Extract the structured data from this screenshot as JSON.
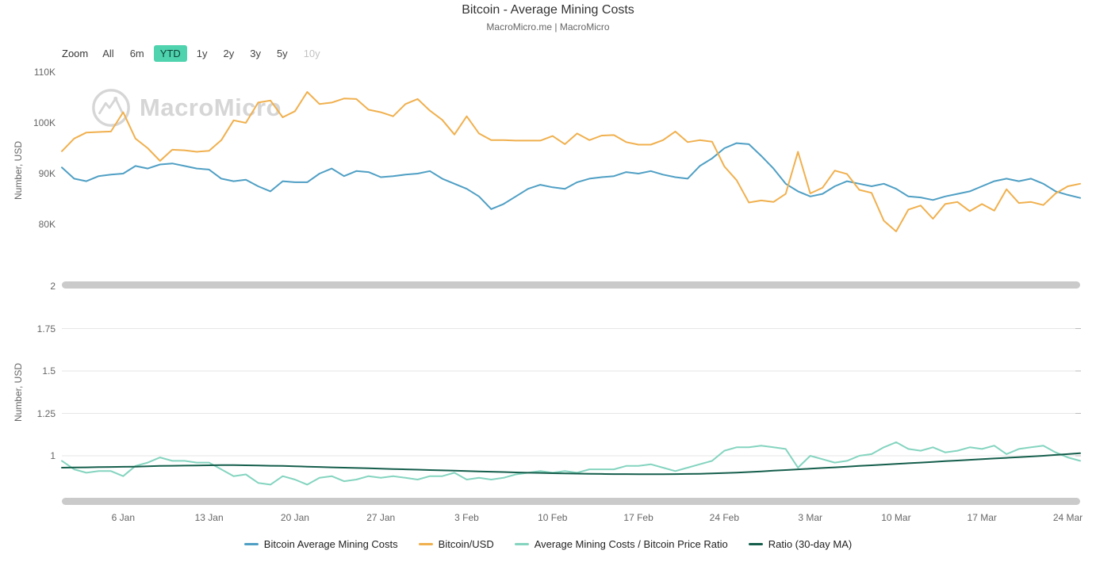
{
  "chart_data": {
    "type": "line",
    "title": "Bitcoin - Average Mining Costs",
    "subtitle": "MacroMicro.me | MacroMicro",
    "x_axis": {
      "freq": "daily",
      "ticks": [
        {
          "label": "6 Jan",
          "index": 5
        },
        {
          "label": "13 Jan",
          "index": 12
        },
        {
          "label": "20 Jan",
          "index": 19
        },
        {
          "label": "27 Jan",
          "index": 26
        },
        {
          "label": "3 Feb",
          "index": 33
        },
        {
          "label": "10 Feb",
          "index": 40
        },
        {
          "label": "17 Feb",
          "index": 47
        },
        {
          "label": "24 Feb",
          "index": 54
        },
        {
          "label": "3 Mar",
          "index": 61
        },
        {
          "label": "10 Mar",
          "index": 68
        },
        {
          "label": "17 Mar",
          "index": 75
        },
        {
          "label": "24 Mar",
          "index": 82
        }
      ]
    },
    "n_points": 84,
    "panes": [
      {
        "ylabel": "Number, USD",
        "unit": "thousand USD",
        "ylim": [
          76,
          113
        ],
        "grid": false,
        "y_ticks": [
          {
            "label": "110K",
            "value": 110
          },
          {
            "label": "100K",
            "value": 100
          },
          {
            "label": "90K",
            "value": 90
          },
          {
            "label": "80K",
            "value": 80
          }
        ],
        "series": [
          {
            "name": "Bitcoin Average Mining Costs",
            "color": "#4f9fc4",
            "values": [
              91.2,
              89.0,
              88.5,
              89.5,
              89.8,
              90.0,
              91.5,
              91.0,
              91.8,
              92.0,
              91.5,
              91.0,
              90.8,
              89.0,
              88.5,
              88.8,
              87.5,
              86.5,
              88.5,
              88.3,
              88.3,
              90.0,
              91.0,
              89.5,
              90.5,
              90.3,
              89.3,
              89.5,
              89.8,
              90.0,
              90.5,
              89.0,
              88.0,
              87.0,
              85.5,
              83.0,
              84.0,
              85.5,
              87.0,
              87.8,
              87.3,
              87.0,
              88.3,
              89.0,
              89.3,
              89.5,
              90.3,
              90.0,
              90.5,
              89.8,
              89.3,
              89.0,
              91.5,
              93.0,
              95.0,
              96.0,
              95.8,
              93.5,
              91.0,
              88.0,
              86.5,
              85.5,
              86.0,
              87.5,
              88.5,
              88.0,
              87.5,
              88.0,
              87.0,
              85.5,
              85.3,
              84.8,
              85.5,
              86.0,
              86.5,
              87.5,
              88.5,
              89.0,
              88.5,
              89.0,
              88.0,
              86.5,
              85.8,
              85.2
            ]
          },
          {
            "name": "Bitcoin/USD",
            "color": "#f0b04e",
            "values": [
              94.4,
              96.9,
              98.1,
              98.2,
              98.3,
              102.1,
              96.9,
              95.0,
              92.5,
              94.7,
              94.6,
              94.3,
              94.5,
              96.6,
              100.5,
              100.0,
              104.0,
              104.4,
              101.1,
              102.3,
              106.1,
              103.7,
              104.0,
              104.8,
              104.7,
              102.6,
              102.1,
              101.3,
              103.7,
              104.7,
              102.4,
              100.6,
              97.7,
              101.3,
              97.9,
              96.6,
              96.6,
              96.5,
              96.5,
              96.5,
              97.4,
              95.8,
              97.9,
              96.6,
              97.5,
              97.6,
              96.2,
              95.7,
              95.7,
              96.6,
              98.3,
              96.2,
              96.6,
              96.3,
              91.4,
              88.7,
              84.3,
              84.7,
              84.4,
              86.0,
              94.3,
              86.1,
              87.2,
              90.6,
              89.9,
              86.8,
              86.2,
              80.7,
              78.6,
              82.9,
              83.7,
              81.1,
              84.0,
              84.4,
              82.6,
              84.0,
              82.7,
              86.9,
              84.2,
              84.4,
              83.8,
              86.1,
              87.5,
              88.0
            ]
          }
        ]
      },
      {
        "ylabel": "Number, USD",
        "unit": "ratio",
        "ylim": [
          0.78,
          2.0
        ],
        "grid": true,
        "y_ticks": [
          {
            "label": "2",
            "value": 2
          },
          {
            "label": "1.75",
            "value": 1.75
          },
          {
            "label": "1.5",
            "value": 1.5
          },
          {
            "label": "1.25",
            "value": 1.25
          },
          {
            "label": "1",
            "value": 1
          }
        ],
        "series": [
          {
            "name": "Average Mining Costs / Bitcoin Price Ratio",
            "color": "#84d4bf",
            "values": [
              0.97,
              0.92,
              0.9,
              0.91,
              0.91,
              0.88,
              0.94,
              0.96,
              0.99,
              0.97,
              0.97,
              0.96,
              0.96,
              0.92,
              0.88,
              0.89,
              0.84,
              0.83,
              0.88,
              0.86,
              0.83,
              0.87,
              0.88,
              0.85,
              0.86,
              0.88,
              0.87,
              0.88,
              0.87,
              0.86,
              0.88,
              0.88,
              0.9,
              0.86,
              0.87,
              0.86,
              0.87,
              0.89,
              0.9,
              0.91,
              0.9,
              0.91,
              0.9,
              0.92,
              0.92,
              0.92,
              0.94,
              0.94,
              0.95,
              0.93,
              0.91,
              0.93,
              0.95,
              0.97,
              1.03,
              1.05,
              1.05,
              1.06,
              1.05,
              1.04,
              0.93,
              1.0,
              0.98,
              0.96,
              0.97,
              1.0,
              1.01,
              1.05,
              1.08,
              1.04,
              1.03,
              1.05,
              1.02,
              1.03,
              1.05,
              1.04,
              1.06,
              1.01,
              1.04,
              1.05,
              1.06,
              1.02,
              0.99,
              0.97
            ]
          },
          {
            "name": "Ratio (30-day MA)",
            "color": "#155e4c",
            "values": [
              0.93,
              0.931,
              0.932,
              0.933,
              0.934,
              0.935,
              0.936,
              0.938,
              0.94,
              0.941,
              0.942,
              0.943,
              0.944,
              0.945,
              0.945,
              0.944,
              0.943,
              0.941,
              0.94,
              0.938,
              0.936,
              0.934,
              0.932,
              0.93,
              0.928,
              0.926,
              0.924,
              0.922,
              0.92,
              0.918,
              0.916,
              0.914,
              0.912,
              0.91,
              0.908,
              0.906,
              0.904,
              0.902,
              0.9,
              0.899,
              0.897,
              0.896,
              0.895,
              0.894,
              0.893,
              0.892,
              0.892,
              0.891,
              0.891,
              0.891,
              0.892,
              0.893,
              0.894,
              0.896,
              0.898,
              0.901,
              0.904,
              0.908,
              0.912,
              0.916,
              0.92,
              0.924,
              0.928,
              0.932,
              0.936,
              0.94,
              0.944,
              0.948,
              0.952,
              0.956,
              0.96,
              0.964,
              0.968,
              0.972,
              0.976,
              0.98,
              0.984,
              0.988,
              0.992,
              0.996,
              1.0,
              1.005,
              1.01,
              1.015
            ]
          }
        ]
      }
    ],
    "legend_position": "bottom"
  },
  "toolbar": {
    "label": "Zoom",
    "active_bg": "#4fd3ae",
    "buttons": [
      {
        "label": "All",
        "active": false,
        "enabled": true
      },
      {
        "label": "6m",
        "active": false,
        "enabled": true
      },
      {
        "label": "YTD",
        "active": true,
        "enabled": true
      },
      {
        "label": "1y",
        "active": false,
        "enabled": true
      },
      {
        "label": "2y",
        "active": false,
        "enabled": true
      },
      {
        "label": "3y",
        "active": false,
        "enabled": true
      },
      {
        "label": "5y",
        "active": false,
        "enabled": true
      },
      {
        "label": "10y",
        "active": false,
        "enabled": false
      }
    ]
  },
  "watermark": {
    "text": "MacroMicro"
  },
  "colors": {
    "grid": "#e6e6e6",
    "scrollbar": "#cacaca",
    "axis_text": "#666666",
    "title_text": "#333333"
  }
}
